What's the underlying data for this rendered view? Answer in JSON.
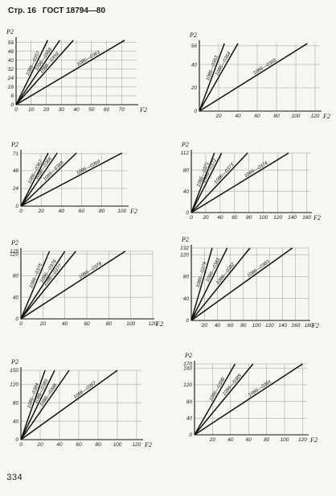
{
  "header": {
    "page_label": "Стр. 16",
    "standard": "ГОСТ 18794—80"
  },
  "footer": {
    "page_number": "334"
  },
  "chart_data": [
    {
      "type": "line",
      "xlabel": "F2",
      "ylabel": "P2",
      "xlim": [
        0,
        80
      ],
      "ylim": [
        0,
        58
      ],
      "xticks": [
        0,
        10,
        20,
        30,
        40,
        50,
        60,
        70
      ],
      "yticks": [
        0,
        8,
        16,
        24,
        32,
        40,
        48,
        56
      ],
      "series": [
        {
          "name": "1086—0357",
          "x": [
            0,
            21
          ],
          "y": [
            0,
            58
          ]
        },
        {
          "name": "1086—0358",
          "x": [
            0,
            29
          ],
          "y": [
            0,
            58
          ]
        },
        {
          "name": "1086—0359",
          "x": [
            0,
            38
          ],
          "y": [
            0,
            58
          ]
        },
        {
          "name": "1086—0361",
          "x": [
            0,
            72
          ],
          "y": [
            0,
            58
          ]
        }
      ]
    },
    {
      "type": "line",
      "xlabel": "F2",
      "ylabel": "P2",
      "xlim": [
        0,
        125
      ],
      "ylim": [
        0,
        58
      ],
      "xticks": [
        20,
        40,
        60,
        80,
        100,
        120
      ],
      "yticks": [
        0,
        20,
        40,
        56
      ],
      "series": [
        {
          "name": "1086—0363",
          "x": [
            0,
            26
          ],
          "y": [
            0,
            58
          ]
        },
        {
          "name": "1086—0364",
          "x": [
            0,
            40
          ],
          "y": [
            0,
            58
          ]
        },
        {
          "name": "1086—0365",
          "x": [
            0,
            112
          ],
          "y": [
            0,
            58
          ]
        }
      ]
    },
    {
      "type": "line",
      "xlabel": "F2",
      "ylabel": "P2",
      "xlim": [
        0,
        105
      ],
      "ylim": [
        0,
        72
      ],
      "xticks": [
        0,
        20,
        40,
        60,
        80,
        100
      ],
      "yticks": [
        0,
        24,
        48,
        71
      ],
      "series": [
        {
          "name": "1086—0367",
          "x": [
            0,
            27
          ],
          "y": [
            0,
            72
          ]
        },
        {
          "name": "1086—0366",
          "x": [
            0,
            36
          ],
          "y": [
            0,
            72
          ]
        },
        {
          "name": "1086—0368",
          "x": [
            0,
            55
          ],
          "y": [
            0,
            72
          ]
        },
        {
          "name": "1086—0369",
          "x": [
            0,
            100
          ],
          "y": [
            0,
            72
          ]
        }
      ]
    },
    {
      "type": "line",
      "xlabel": "F2",
      "ylabel": "P2",
      "xlim": [
        0,
        165
      ],
      "ylim": [
        0,
        112
      ],
      "xticks": [
        0,
        20,
        40,
        60,
        80,
        100,
        120,
        140,
        160
      ],
      "yticks": [
        0,
        40,
        80,
        112
      ],
      "series": [
        {
          "name": "1086—0371",
          "x": [
            0,
            32
          ],
          "y": [
            0,
            112
          ]
        },
        {
          "name": "1086—0372",
          "x": [
            0,
            42
          ],
          "y": [
            0,
            112
          ]
        },
        {
          "name": "1086—0373",
          "x": [
            0,
            78
          ],
          "y": [
            0,
            112
          ]
        },
        {
          "name": "1086—0374",
          "x": [
            0,
            135
          ],
          "y": [
            0,
            112
          ]
        }
      ]
    },
    {
      "type": "line",
      "xlabel": "F2",
      "ylabel": "P2",
      "xlim": [
        0,
        120
      ],
      "ylim": [
        0,
        125
      ],
      "xticks": [
        0,
        20,
        40,
        60,
        80,
        100,
        120
      ],
      "yticks": [
        0,
        40,
        80,
        120,
        125
      ],
      "series": [
        {
          "name": "1086—0375",
          "x": [
            0,
            26
          ],
          "y": [
            0,
            125
          ]
        },
        {
          "name": "1086—0376",
          "x": [
            0,
            40
          ],
          "y": [
            0,
            125
          ]
        },
        {
          "name": "1086—0377",
          "x": [
            0,
            50
          ],
          "y": [
            0,
            125
          ]
        },
        {
          "name": "1086—0378",
          "x": [
            0,
            95
          ],
          "y": [
            0,
            125
          ]
        }
      ]
    },
    {
      "type": "line",
      "xlabel": "F2",
      "ylabel": "P2",
      "xlim": [
        0,
        180
      ],
      "ylim": [
        0,
        132
      ],
      "xticks": [
        20,
        40,
        60,
        80,
        100,
        120,
        140,
        160,
        180
      ],
      "yticks": [
        0,
        40,
        80,
        120,
        132
      ],
      "series": [
        {
          "name": "1086—0379",
          "x": [
            0,
            32
          ],
          "y": [
            0,
            132
          ]
        },
        {
          "name": "1086—0381",
          "x": [
            0,
            55
          ],
          "y": [
            0,
            132
          ]
        },
        {
          "name": "1086—0382",
          "x": [
            0,
            90
          ],
          "y": [
            0,
            132
          ]
        },
        {
          "name": "1086—0383",
          "x": [
            0,
            155
          ],
          "y": [
            0,
            132
          ]
        }
      ]
    },
    {
      "type": "line",
      "xlabel": "F2",
      "ylabel": "P2",
      "xlim": [
        0,
        125
      ],
      "ylim": [
        0,
        150
      ],
      "xticks": [
        0,
        20,
        40,
        60,
        80,
        100,
        120
      ],
      "yticks": [
        0,
        40,
        80,
        120,
        150
      ],
      "series": [
        {
          "name": "1086—0384",
          "x": [
            0,
            25
          ],
          "y": [
            0,
            150
          ]
        },
        {
          "name": "1086—0385",
          "x": [
            0,
            35
          ],
          "y": [
            0,
            150
          ]
        },
        {
          "name": "1086—0386",
          "x": [
            0,
            50
          ],
          "y": [
            0,
            150
          ]
        },
        {
          "name": "1086—0387",
          "x": [
            0,
            100
          ],
          "y": [
            0,
            150
          ]
        }
      ]
    },
    {
      "type": "line",
      "xlabel": "F2",
      "ylabel": "P2",
      "xlim": [
        0,
        125
      ],
      "ylim": [
        0,
        170
      ],
      "xticks": [
        20,
        40,
        60,
        80,
        100,
        120
      ],
      "yticks": [
        0,
        40,
        80,
        120,
        160,
        170
      ],
      "series": [
        {
          "name": "1086—0388",
          "x": [
            0,
            45
          ],
          "y": [
            0,
            170
          ]
        },
        {
          "name": "1086—0389",
          "x": [
            0,
            65
          ],
          "y": [
            0,
            170
          ]
        },
        {
          "name": "1086—0391",
          "x": [
            0,
            120
          ],
          "y": [
            0,
            170
          ]
        }
      ]
    }
  ]
}
